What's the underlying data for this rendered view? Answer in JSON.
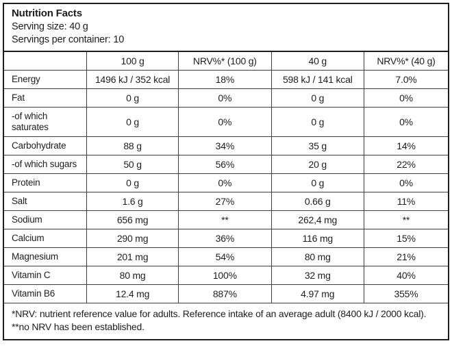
{
  "header": {
    "title": "Nutrition Facts",
    "serving_size": "Serving size: 40 g",
    "servings_per_container": "Servings per container: 10"
  },
  "table": {
    "columns": [
      "",
      "100 g",
      "NRV%* (100 g)",
      "40 g",
      "NRV%* (40 g)"
    ],
    "rows": [
      {
        "label": "Energy",
        "per_100g": "1496 kJ / 352 kcal",
        "nrv_100g": "18%",
        "per_40g": "598 kJ / 141 kcal",
        "nrv_40g": "7.0%"
      },
      {
        "label": "Fat",
        "per_100g": "0 g",
        "nrv_100g": "0%",
        "per_40g": "0 g",
        "nrv_40g": "0%"
      },
      {
        "label": "-of which saturates",
        "per_100g": "0 g",
        "nrv_100g": "0%",
        "per_40g": "0 g",
        "nrv_40g": "0%"
      },
      {
        "label": "Carbohydrate",
        "per_100g": "88 g",
        "nrv_100g": "34%",
        "per_40g": "35 g",
        "nrv_40g": "14%"
      },
      {
        "label": "-of which sugars",
        "per_100g": "50 g",
        "nrv_100g": "56%",
        "per_40g": "20 g",
        "nrv_40g": "22%"
      },
      {
        "label": "Protein",
        "per_100g": "0 g",
        "nrv_100g": "0%",
        "per_40g": "0 g",
        "nrv_40g": "0%"
      },
      {
        "label": "Salt",
        "per_100g": "1.6 g",
        "nrv_100g": "27%",
        "per_40g": "0.66 g",
        "nrv_40g": "11%"
      },
      {
        "label": "Sodium",
        "per_100g": "656 mg",
        "nrv_100g": "**",
        "per_40g": "262,4 mg",
        "nrv_40g": "**"
      },
      {
        "label": "Calcium",
        "per_100g": "290 mg",
        "nrv_100g": "36%",
        "per_40g": "116 mg",
        "nrv_40g": "15%"
      },
      {
        "label": "Magnesium",
        "per_100g": "201 mg",
        "nrv_100g": "54%",
        "per_40g": "80 mg",
        "nrv_40g": "21%"
      },
      {
        "label": "Vitamin C",
        "per_100g": "80 mg",
        "nrv_100g": "100%",
        "per_40g": "32 mg",
        "nrv_40g": "40%"
      },
      {
        "label": "Vitamin B6",
        "per_100g": "12.4 mg",
        "nrv_100g": "887%",
        "per_40g": "4.97 mg",
        "nrv_40g": "355%"
      }
    ]
  },
  "footnote": "*NRV: nutrient reference value for adults. Reference intake of an average adult (8400 kJ / 2000 kcal). **no NRV has been established.",
  "colors": {
    "text": "#1d1d1d",
    "border": "#3d3d3d",
    "frame": "#1d1d1d",
    "background": "#ffffff"
  }
}
